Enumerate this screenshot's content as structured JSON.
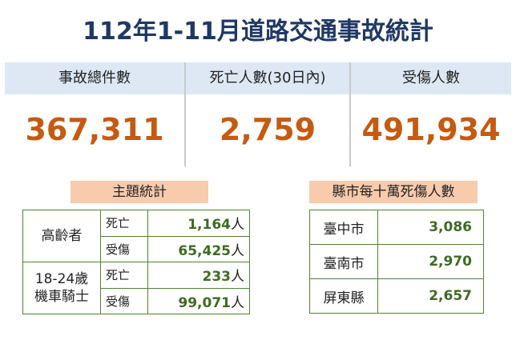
{
  "title": "112年1-11月道路交通事故統計",
  "summary": [
    {
      "label": "事故總件數",
      "value": "367,311"
    },
    {
      "label": "死亡人數(30日內)",
      "value": "2,759"
    },
    {
      "label": "受傷人數",
      "value": "491,934"
    }
  ],
  "topic_stats": {
    "heading": "主題統計",
    "groups": [
      {
        "group_lines": [
          "高齡者"
        ],
        "rows": [
          {
            "item": "死亡",
            "value": "1,164",
            "unit": "人"
          },
          {
            "item": "受傷",
            "value": "65,425",
            "unit": "人"
          }
        ]
      },
      {
        "group_lines": [
          "18-24歲",
          "機車騎士"
        ],
        "rows": [
          {
            "item": "死亡",
            "value": "233",
            "unit": "人"
          },
          {
            "item": "受傷",
            "value": "99,071",
            "unit": "人"
          }
        ]
      }
    ]
  },
  "county_stats": {
    "heading": "縣市每十萬死傷人數",
    "rows": [
      {
        "county": "臺中市",
        "value": "3,086"
      },
      {
        "county": "臺南市",
        "value": "2,970"
      },
      {
        "county": "屏東縣",
        "value": "2,657"
      }
    ]
  }
}
